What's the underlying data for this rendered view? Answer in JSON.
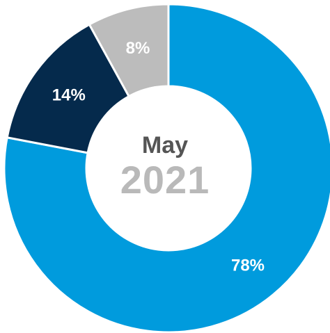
{
  "chart_data": {
    "type": "pie",
    "center_title": "May",
    "center_subtitle": "2021",
    "slices": [
      {
        "label": "78%",
        "value": 78,
        "color": "#009BDD"
      },
      {
        "label": "14%",
        "value": 14,
        "color": "#052A4C"
      },
      {
        "label": "8%",
        "value": 8,
        "color": "#BCBCBC"
      }
    ]
  }
}
